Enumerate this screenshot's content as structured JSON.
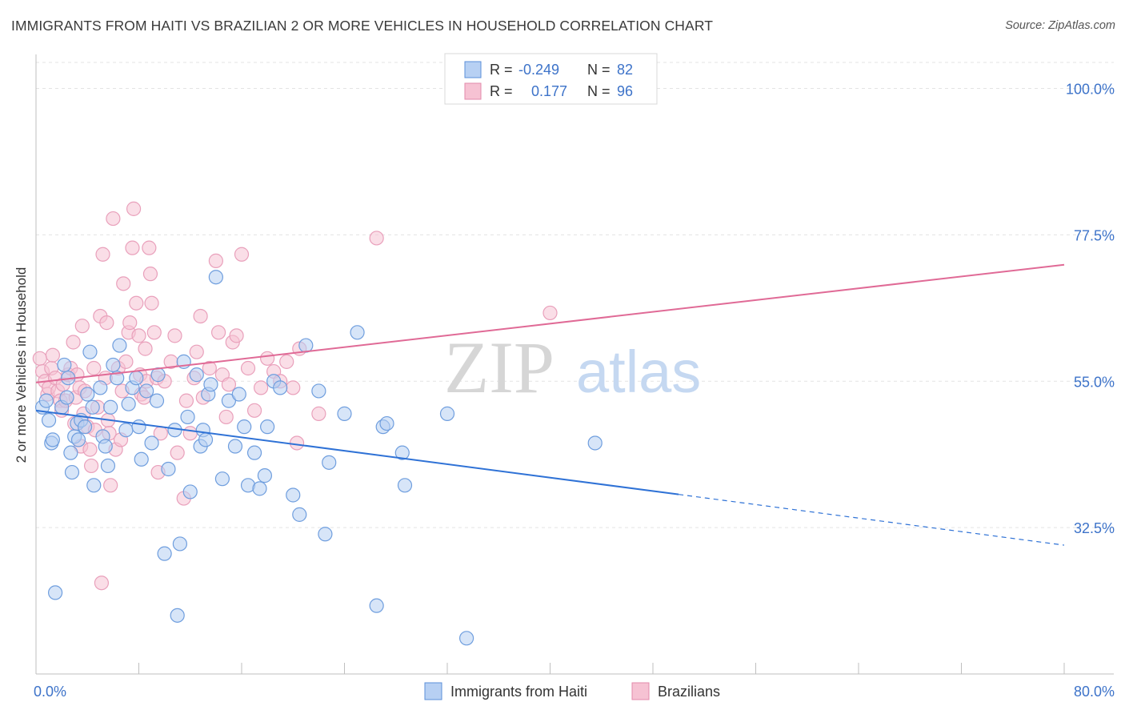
{
  "title": "IMMIGRANTS FROM HAITI VS BRAZILIAN 2 OR MORE VEHICLES IN HOUSEHOLD CORRELATION CHART",
  "source": "Source: ZipAtlas.com",
  "watermark": {
    "zip": "ZIP",
    "atlas": "atlas"
  },
  "colors": {
    "blue": "#3f7fd9",
    "blue_fill": "#b7d0f3",
    "pink": "#e06a96",
    "pink_fill": "#f6c2d3",
    "axis_text": "#3d73c9",
    "grid": "#e2e2e2"
  },
  "legend_stats": [
    {
      "r_label": "R =",
      "r_value": "-0.249",
      "n_label": "N =",
      "n_value": "82"
    },
    {
      "r_label": "R =",
      "r_value": "0.177",
      "n_label": "N =",
      "n_value": "96"
    }
  ],
  "chart_data": {
    "type": "scatter",
    "title": "IMMIGRANTS FROM HAITI VS BRAZILIAN 2 OR MORE VEHICLES IN HOUSEHOLD CORRELATION CHART",
    "xlabel": "",
    "ylabel": "2 or more Vehicles in Household",
    "xlim": [
      0,
      80
    ],
    "ylim": [
      10,
      104
    ],
    "x_tick_labels": [
      "0.0%",
      "80.0%"
    ],
    "y_ticks": [
      32.5,
      55.0,
      77.5,
      100.0
    ],
    "y_tick_labels": [
      "32.5%",
      "55.0%",
      "77.5%",
      "100.0%"
    ],
    "grid": true,
    "legend_position": "bottom",
    "series": [
      {
        "name": "Immigrants from Haiti",
        "color": "#3f7fd9",
        "trend": {
          "x0": 0,
          "y0": 50.5,
          "x1": 50,
          "y1": 37.6,
          "dash_to_x": 80,
          "dash_to_y": 29.8
        },
        "points": [
          [
            0.5,
            51
          ],
          [
            0.8,
            52
          ],
          [
            1,
            49
          ],
          [
            1.2,
            45.5
          ],
          [
            1.3,
            46
          ],
          [
            1.5,
            22.5
          ],
          [
            2,
            51
          ],
          [
            2.2,
            57.5
          ],
          [
            2.4,
            52.5
          ],
          [
            2.5,
            55.5
          ],
          [
            2.7,
            44
          ],
          [
            2.8,
            41
          ],
          [
            3,
            46.5
          ],
          [
            3.2,
            48.5
          ],
          [
            3.5,
            49
          ],
          [
            3.8,
            48
          ],
          [
            4,
            53
          ],
          [
            4.2,
            59.5
          ],
          [
            4.5,
            39
          ],
          [
            5,
            54
          ],
          [
            5.2,
            46.5
          ],
          [
            5.4,
            45
          ],
          [
            5.6,
            42
          ],
          [
            5.8,
            51
          ],
          [
            6,
            57.5
          ],
          [
            6.3,
            55.5
          ],
          [
            6.5,
            60.5
          ],
          [
            7,
            47.5
          ],
          [
            7.2,
            51.5
          ],
          [
            7.5,
            54
          ],
          [
            7.8,
            55.5
          ],
          [
            8,
            48
          ],
          [
            8.2,
            43
          ],
          [
            8.6,
            53.5
          ],
          [
            9,
            45.5
          ],
          [
            9.5,
            56
          ],
          [
            10,
            28.5
          ],
          [
            10.3,
            41.5
          ],
          [
            10.8,
            47.5
          ],
          [
            11,
            19
          ],
          [
            11.2,
            30
          ],
          [
            11.5,
            58
          ],
          [
            11.8,
            49.5
          ],
          [
            12,
            38
          ],
          [
            12.5,
            56
          ],
          [
            12.8,
            45
          ],
          [
            13,
            47.5
          ],
          [
            13.2,
            46
          ],
          [
            13.4,
            53
          ],
          [
            13.6,
            54.5
          ],
          [
            14,
            71
          ],
          [
            14.5,
            40
          ],
          [
            15,
            52
          ],
          [
            15.5,
            45
          ],
          [
            15.8,
            53
          ],
          [
            16.2,
            48
          ],
          [
            16.5,
            39
          ],
          [
            17,
            44
          ],
          [
            17.4,
            38.5
          ],
          [
            17.8,
            40.5
          ],
          [
            18,
            48
          ],
          [
            18.5,
            55
          ],
          [
            19,
            54
          ],
          [
            20,
            37.5
          ],
          [
            20.5,
            34.5
          ],
          [
            21,
            60.5
          ],
          [
            22,
            53.5
          ],
          [
            22.5,
            31.5
          ],
          [
            22.8,
            42.5
          ],
          [
            24,
            50
          ],
          [
            25,
            62.5
          ],
          [
            26.5,
            20.5
          ],
          [
            27,
            48
          ],
          [
            27.3,
            48.5
          ],
          [
            28.5,
            44
          ],
          [
            28.7,
            39
          ],
          [
            32,
            50
          ],
          [
            33.5,
            15.5
          ],
          [
            43.5,
            45.5
          ],
          [
            3.3,
            46
          ],
          [
            4.4,
            51
          ],
          [
            9.4,
            52
          ]
        ]
      },
      {
        "name": "Brazilians",
        "color": "#e06a96",
        "trend": {
          "x0": 0,
          "y0": 54.8,
          "x1": 80,
          "y1": 72.9
        },
        "points": [
          [
            0.3,
            58.5
          ],
          [
            0.5,
            56.5
          ],
          [
            0.7,
            55
          ],
          [
            0.9,
            53
          ],
          [
            1,
            54
          ],
          [
            1.2,
            57
          ],
          [
            1.3,
            59
          ],
          [
            1.5,
            55.5
          ],
          [
            1.7,
            53.5
          ],
          [
            1.9,
            52
          ],
          [
            2,
            50.5
          ],
          [
            2.1,
            54.5
          ],
          [
            2.3,
            52
          ],
          [
            2.5,
            56
          ],
          [
            2.7,
            57
          ],
          [
            2.9,
            61
          ],
          [
            3,
            48.5
          ],
          [
            3.1,
            52.5
          ],
          [
            3.2,
            56
          ],
          [
            3.4,
            54
          ],
          [
            3.5,
            45
          ],
          [
            3.6,
            63.5
          ],
          [
            3.7,
            50
          ],
          [
            3.8,
            53.5
          ],
          [
            4,
            48
          ],
          [
            4.2,
            44.5
          ],
          [
            4.3,
            42
          ],
          [
            4.5,
            57
          ],
          [
            4.6,
            47.5
          ],
          [
            4.8,
            51
          ],
          [
            5,
            65
          ],
          [
            5.2,
            74.5
          ],
          [
            5.4,
            55.5
          ],
          [
            5.5,
            64
          ],
          [
            5.6,
            49
          ],
          [
            5.7,
            47
          ],
          [
            5.8,
            39
          ],
          [
            6,
            80
          ],
          [
            6.2,
            44.5
          ],
          [
            6.4,
            57
          ],
          [
            6.6,
            46
          ],
          [
            6.7,
            53.5
          ],
          [
            6.8,
            70
          ],
          [
            7,
            58
          ],
          [
            7.2,
            62.5
          ],
          [
            7.3,
            64
          ],
          [
            7.5,
            75.5
          ],
          [
            7.6,
            81.5
          ],
          [
            7.8,
            67
          ],
          [
            8,
            62
          ],
          [
            8.1,
            56
          ],
          [
            8.2,
            53
          ],
          [
            8.4,
            52.5
          ],
          [
            8.5,
            60
          ],
          [
            8.6,
            55
          ],
          [
            8.8,
            75.5
          ],
          [
            8.9,
            71.5
          ],
          [
            9,
            67
          ],
          [
            9.2,
            62.5
          ],
          [
            9.4,
            55.5
          ],
          [
            9.5,
            41
          ],
          [
            9.7,
            47
          ],
          [
            10,
            55
          ],
          [
            10.5,
            58
          ],
          [
            10.8,
            62
          ],
          [
            11,
            44
          ],
          [
            11.5,
            37
          ],
          [
            11.7,
            52
          ],
          [
            12,
            47
          ],
          [
            12.3,
            55.5
          ],
          [
            12.5,
            59.5
          ],
          [
            12.8,
            65
          ],
          [
            13,
            52.5
          ],
          [
            13.5,
            57
          ],
          [
            14,
            73.5
          ],
          [
            14.2,
            62.5
          ],
          [
            14.5,
            56
          ],
          [
            14.8,
            49.5
          ],
          [
            15,
            54.5
          ],
          [
            15.3,
            61
          ],
          [
            15.6,
            62
          ],
          [
            16,
            74.5
          ],
          [
            16.5,
            57
          ],
          [
            17,
            50.5
          ],
          [
            17.5,
            54
          ],
          [
            18,
            58.5
          ],
          [
            18.5,
            56.5
          ],
          [
            19,
            55
          ],
          [
            19.5,
            58
          ],
          [
            20,
            54
          ],
          [
            20.3,
            45.5
          ],
          [
            20.5,
            60
          ],
          [
            22,
            50
          ],
          [
            26.5,
            77
          ],
          [
            40,
            65.5
          ],
          [
            5.1,
            24
          ]
        ]
      }
    ]
  }
}
